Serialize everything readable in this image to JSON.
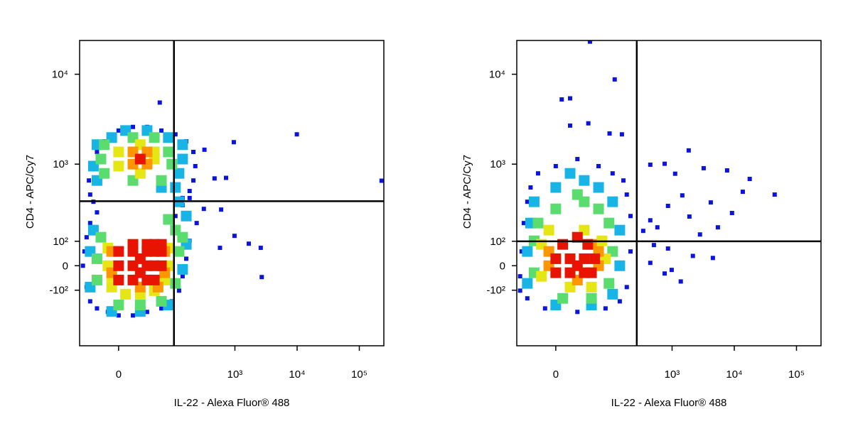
{
  "chart_data": [
    {
      "type": "scatter",
      "xlabel": "IL-22 - Alexa Fluor® 488",
      "ylabel": "CD4 - APC/Cy7",
      "xscale": "biexponential",
      "yscale": "biexponential",
      "xlim": [
        -54,
        248000
      ],
      "ylim": [
        -570,
        23700
      ],
      "xticks": [
        0,
        {
          "value": 1000,
          "label": "10³"
        },
        {
          "value": 10000,
          "label": "10⁴"
        },
        {
          "value": 100000,
          "label": "10⁵"
        }
      ],
      "yticks": [
        {
          "value": -100,
          "label": "-10²"
        },
        0,
        {
          "value": 100,
          "label": "10²"
        },
        {
          "value": 1000,
          "label": "10³"
        },
        {
          "value": 10000,
          "label": "10⁴"
        }
      ],
      "gates": {
        "x": 103,
        "y": 376
      },
      "series": [
        {
          "color": "#0a14dc",
          "x": [
            -47,
            -40,
            -34,
            -24,
            -11,
            0,
            15,
            34,
            63,
            95,
            125,
            143,
            164,
            186,
            242,
            316,
            -44,
            -40,
            -34,
            -24,
            109,
            143,
            186,
            -34,
            -36,
            -32,
            -24,
            -15,
            0,
            15,
            34,
            63,
            109,
            164,
            214,
            230,
            214,
            186,
            143,
            -29,
            59,
            600,
            985,
            1670,
            2600,
            2700,
            470,
            720,
            960,
            9900,
            228000,
            323,
            575
          ],
          "values": [
            0,
            -86,
            -156,
            -198,
            -221,
            -246,
            -246,
            -221,
            -198,
            -156,
            -102,
            -41,
            27,
            102,
            198,
            303,
            56,
            119,
            198,
            274,
            246,
            336,
            410,
            450,
            654,
            950,
            1370,
            1800,
            2370,
            2600,
            2600,
            2370,
            2150,
            1800,
            1370,
            950,
            654,
            495,
            410,
            370,
            4850,
            297,
            126,
            89,
            71,
            -44,
            690,
            700,
            1760,
            2150,
            650,
            1450,
            71
          ]
        },
        {
          "color": "#19b4e6",
          "x": [
            -34,
            -34,
            -29,
            -7,
            24,
            83,
            143,
            164,
            164,
            125,
            109,
            -24,
            -29,
            -24,
            -7,
            7,
            34,
            83,
            143,
            143,
            125,
            63
          ],
          "values": [
            -86,
            56,
            156,
            -218,
            -218,
            -177,
            -14,
            86,
            246,
            370,
            544,
            654,
            950,
            1650,
            1980,
            2370,
            2370,
            1980,
            1650,
            1140,
            787,
            544
          ]
        },
        {
          "color": "#5adc6e",
          "x": [
            -24,
            -24,
            -19,
            0,
            24,
            63,
            109,
            125,
            109,
            83,
            143,
            -15,
            -19,
            -15,
            15,
            47,
            83,
            95,
            63,
            15
          ],
          "values": [
            -56,
            27,
            119,
            -177,
            -177,
            -156,
            -70,
            56,
            156,
            222,
            119,
            787,
            1140,
            1650,
            1980,
            1980,
            1370,
            1000,
            654,
            654
          ]
        },
        {
          "color": "#e6e614",
          "x": [
            -7,
            7,
            24,
            47,
            72,
            83,
            83,
            -11,
            -11,
            -7,
            0,
            47,
            0,
            47,
            24,
            24
          ],
          "values": [
            -86,
            -119,
            -119,
            -102,
            -56,
            0,
            70,
            0,
            70,
            -41,
            950,
            1140,
            1370,
            1370,
            787,
            1650
          ]
        },
        {
          "color": "#ff9600",
          "x": [
            -7,
            72,
            24,
            55,
            -7,
            72,
            15,
            34,
            24,
            15,
            34
          ],
          "values": [
            -27,
            -27,
            -86,
            -86,
            56,
            56,
            1000,
            1000,
            1140,
            1370,
            1370
          ]
        },
        {
          "color": "#e61400",
          "x": [
            0,
            15,
            34,
            47,
            0,
            15,
            34,
            47,
            63,
            0,
            15,
            34,
            47,
            63,
            15,
            34,
            47,
            63,
            24,
            24,
            24
          ],
          "values": [
            -56,
            -56,
            -56,
            -56,
            0,
            0,
            0,
            0,
            0,
            56,
            56,
            56,
            56,
            56,
            86,
            86,
            86,
            86,
            -27,
            27,
            1140
          ]
        }
      ]
    },
    {
      "type": "scatter",
      "xlabel": "IL-22 - Alexa Fluor® 488",
      "ylabel": "CD4 - APC/Cy7",
      "xscale": "biexponential",
      "yscale": "biexponential",
      "xlim": [
        -54,
        248000
      ],
      "ylim": [
        -570,
        23700
      ],
      "xticks": [
        0,
        {
          "value": 1000,
          "label": "10³"
        },
        {
          "value": 10000,
          "label": "10⁴"
        },
        {
          "value": 100000,
          "label": "10⁵"
        }
      ],
      "yticks": [
        {
          "value": -100,
          "label": "-10²"
        },
        0,
        {
          "value": 100,
          "label": "10²"
        },
        {
          "value": 1000,
          "label": "10³"
        },
        {
          "value": 10000,
          "label": "10⁴"
        }
      ],
      "gates": {
        "x": 270,
        "y": 100
      },
      "series": [
        {
          "color": "#0a14dc",
          "x": [
            -47,
            -44,
            -40,
            -34,
            -29,
            -19,
            0,
            24,
            63,
            109,
            164,
            186,
            214,
            214,
            186,
            143,
            83,
            24,
            -11,
            -34,
            -47,
            44,
            118,
            6,
            15,
            15,
            41,
            97,
            155,
            446,
            1850,
            760,
            1120,
            3220,
            7670,
            17700,
            44600,
            13700,
            9200,
            4190,
            1460,
            860,
            446,
            343,
            580,
            1900,
            5450,
            2810,
            860,
            510,
            2160,
            4530,
            446,
            985,
            760,
            1380
          ],
          "values": [
            -41,
            56,
            198,
            370,
            544,
            787,
            950,
            1140,
            950,
            787,
            654,
            450,
            246,
            56,
            -86,
            -156,
            -198,
            -221,
            -198,
            -140,
            -102,
            23000,
            8760,
            5250,
            5400,
            2690,
            2850,
            2200,
            2150,
            986,
            1425,
            1010,
            780,
            900,
            850,
            681,
            450,
            485,
            269,
            363,
            440,
            330,
            216,
            152,
            172,
            242,
            172,
            133,
            68,
            83,
            38,
            30,
            11,
            -16,
            -30,
            -62
          ]
        },
        {
          "color": "#19b4e6",
          "x": [
            -34,
            -34,
            -29,
            -24,
            0,
            34,
            63,
            109,
            143,
            143,
            109,
            47,
            0,
            15
          ],
          "values": [
            -70,
            56,
            198,
            370,
            544,
            654,
            544,
            370,
            156,
            0,
            -119,
            -177,
            -177,
            787
          ]
        },
        {
          "color": "#5adc6e",
          "x": [
            -24,
            -24,
            -19,
            0,
            34,
            63,
            95,
            109,
            95,
            47,
            7,
            24
          ],
          "values": [
            -27,
            102,
            198,
            303,
            370,
            303,
            198,
            56,
            -70,
            -140,
            -140,
            450
          ]
        },
        {
          "color": "#e6e614",
          "x": [
            -15,
            -15,
            15,
            47,
            83,
            72,
            34,
            -7
          ],
          "values": [
            -41,
            86,
            -86,
            -86,
            27,
            102,
            156,
            156
          ]
        },
        {
          "color": "#ff9600",
          "x": [
            -7,
            -7,
            63,
            63,
            24,
            47
          ],
          "values": [
            0,
            56,
            0,
            56,
            -56,
            86
          ]
        },
        {
          "color": "#e61400",
          "x": [
            0,
            15,
            34,
            47,
            0,
            15,
            34,
            54,
            7,
            24,
            40,
            24
          ],
          "values": [
            -27,
            -27,
            -27,
            -27,
            27,
            27,
            27,
            27,
            86,
            119,
            86,
            0
          ]
        }
      ]
    }
  ]
}
